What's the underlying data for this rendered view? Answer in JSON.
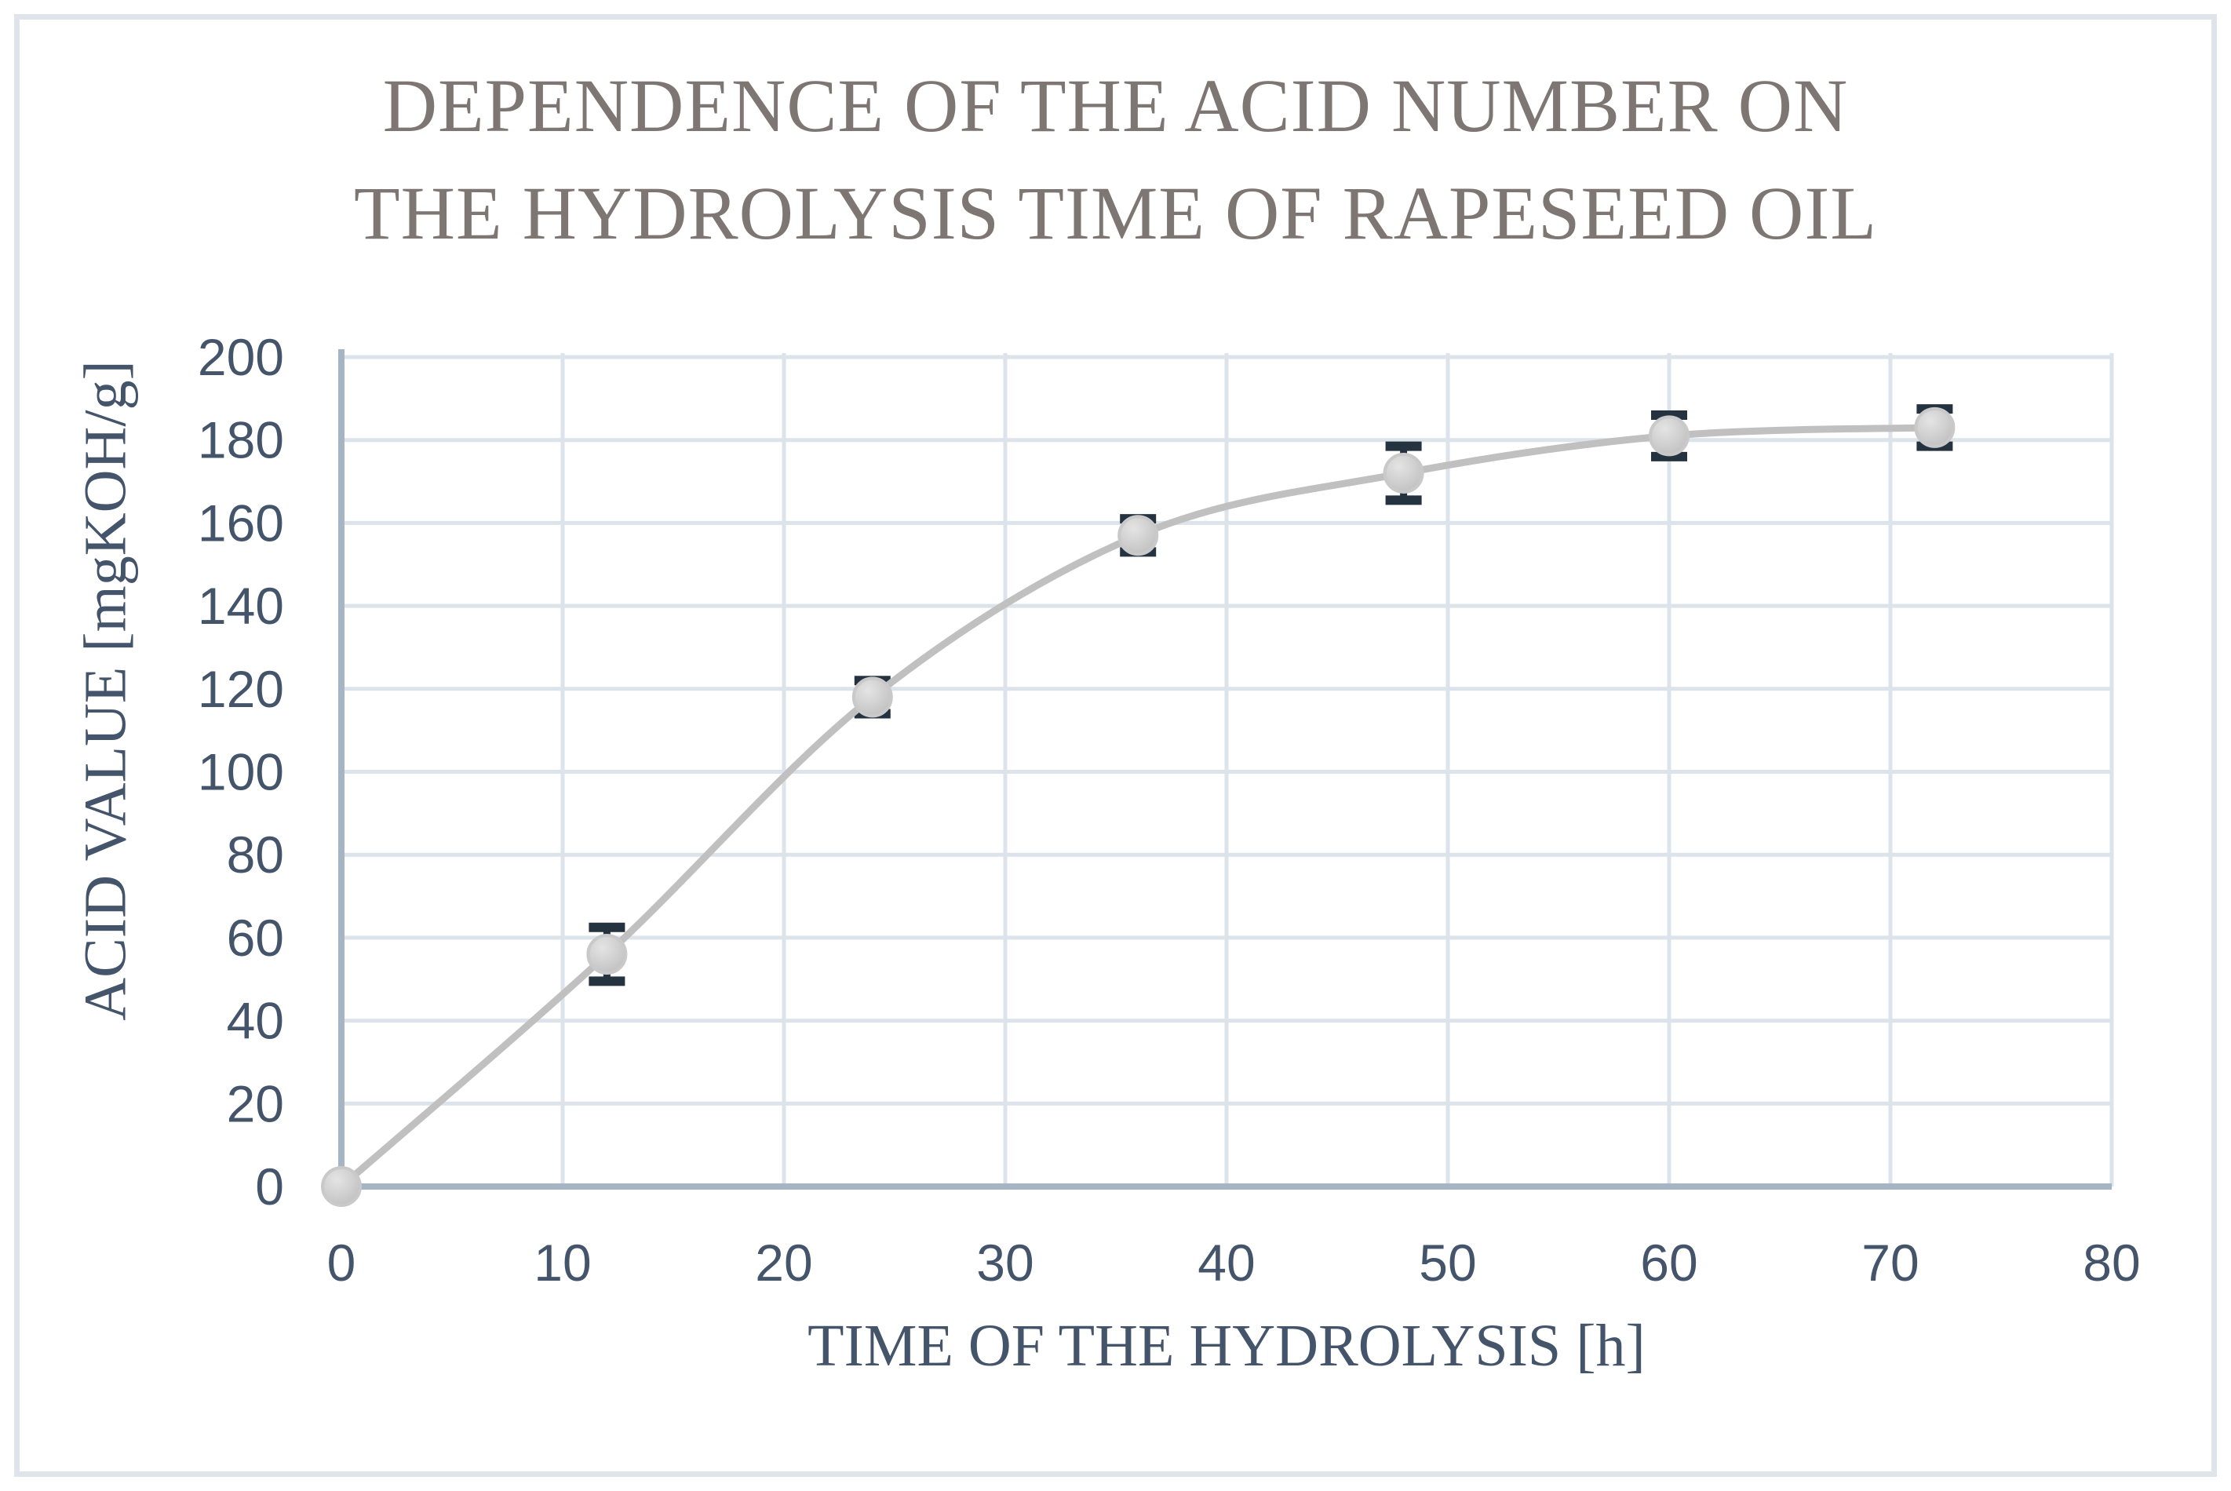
{
  "title": {
    "line1": "DEPENDENCE OF THE ACID NUMBER ON",
    "line2": "THE HYDROLYSIS TIME OF RAPESEED OIL"
  },
  "chart_data": {
    "type": "line",
    "series": [
      {
        "name": "acid value",
        "x": [
          0,
          12,
          24,
          36,
          48,
          60,
          72
        ],
        "y": [
          0,
          56,
          118,
          157,
          172,
          181,
          183
        ],
        "y_err": [
          0,
          6.5,
          4,
          4,
          6.5,
          5,
          4.5
        ]
      }
    ],
    "title": "DEPENDENCE OF THE ACID NUMBER ON THE HYDROLYSIS TIME OF RAPESEED OIL",
    "xlabel": "TIME OF THE HYDROLYSIS [h]",
    "ylabel": "ACID VALUE [mgKOH/g]",
    "xlim": [
      0,
      80
    ],
    "ylim": [
      0,
      200
    ],
    "x_ticks": [
      0,
      10,
      20,
      30,
      40,
      50,
      60,
      70,
      80
    ],
    "y_ticks": [
      0,
      20,
      40,
      60,
      80,
      100,
      120,
      140,
      160,
      180,
      200
    ],
    "grid": true,
    "legend": false,
    "marker": "circle",
    "smooth": true
  },
  "colors": {
    "title_text": "#7E7672",
    "axis_text": "#44546A",
    "gridline": "#DCE3EA",
    "axis_line": "#A6B5C3",
    "series_line": "#C0C0C0",
    "marker_fill_light": "#E2E2E2",
    "marker_fill_mid": "#CCCCCC",
    "marker_fill_dark": "#BDBDBD",
    "marker_stroke": "#C9C9C9",
    "error_bar": "#253341",
    "frame_border": "#DFE4EA",
    "background": "#FFFFFF"
  }
}
